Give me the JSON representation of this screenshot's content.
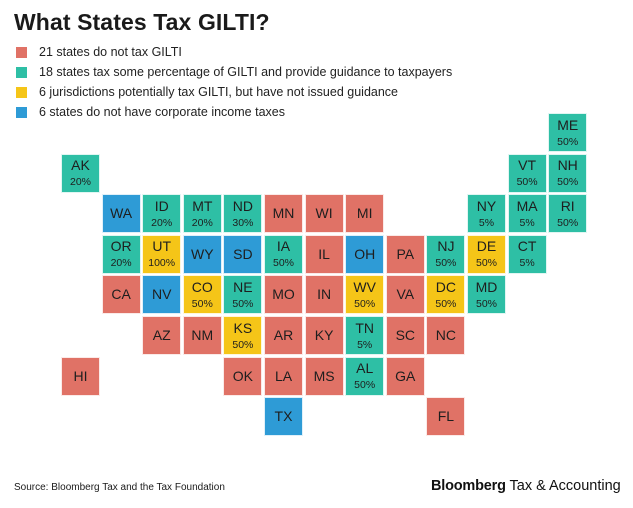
{
  "title": "What States Tax GILTI?",
  "legend": [
    {
      "key": "none",
      "label": "21 states do not tax GILTI",
      "color": "#E07266"
    },
    {
      "key": "some",
      "label": "18 states tax some percentage of GILTI and provide guidance to taxpayers",
      "color": "#2EBFA5"
    },
    {
      "key": "potential",
      "label": "6 jurisdictions potentially tax GILTI, but have not issued guidance",
      "color": "#F5C518"
    },
    {
      "key": "nocorp",
      "label": "6 states do not have corporate income taxes",
      "color": "#2E9BD6"
    }
  ],
  "states": [
    {
      "abbr": "ME",
      "pct": "50%",
      "cat": "some",
      "row": 0,
      "col": 12
    },
    {
      "abbr": "AK",
      "pct": "20%",
      "cat": "some",
      "row": 1,
      "col": 0
    },
    {
      "abbr": "VT",
      "pct": "50%",
      "cat": "some",
      "row": 1,
      "col": 11
    },
    {
      "abbr": "NH",
      "pct": "50%",
      "cat": "some",
      "row": 1,
      "col": 12
    },
    {
      "abbr": "WA",
      "pct": "",
      "cat": "nocorp",
      "row": 2,
      "col": 1
    },
    {
      "abbr": "ID",
      "pct": "20%",
      "cat": "some",
      "row": 2,
      "col": 2
    },
    {
      "abbr": "MT",
      "pct": "20%",
      "cat": "some",
      "row": 2,
      "col": 3
    },
    {
      "abbr": "ND",
      "pct": "30%",
      "cat": "some",
      "row": 2,
      "col": 4
    },
    {
      "abbr": "MN",
      "pct": "",
      "cat": "none",
      "row": 2,
      "col": 5
    },
    {
      "abbr": "WI",
      "pct": "",
      "cat": "none",
      "row": 2,
      "col": 6
    },
    {
      "abbr": "MI",
      "pct": "",
      "cat": "none",
      "row": 2,
      "col": 7
    },
    {
      "abbr": "NY",
      "pct": "5%",
      "cat": "some",
      "row": 2,
      "col": 10
    },
    {
      "abbr": "MA",
      "pct": "5%",
      "cat": "some",
      "row": 2,
      "col": 11
    },
    {
      "abbr": "RI",
      "pct": "50%",
      "cat": "some",
      "row": 2,
      "col": 12
    },
    {
      "abbr": "OR",
      "pct": "20%",
      "cat": "some",
      "row": 3,
      "col": 1
    },
    {
      "abbr": "UT",
      "pct": "100%",
      "cat": "potential",
      "row": 3,
      "col": 2
    },
    {
      "abbr": "WY",
      "pct": "",
      "cat": "nocorp",
      "row": 3,
      "col": 3
    },
    {
      "abbr": "SD",
      "pct": "",
      "cat": "nocorp",
      "row": 3,
      "col": 4
    },
    {
      "abbr": "IA",
      "pct": "50%",
      "cat": "some",
      "row": 3,
      "col": 5
    },
    {
      "abbr": "IL",
      "pct": "",
      "cat": "none",
      "row": 3,
      "col": 6
    },
    {
      "abbr": "OH",
      "pct": "",
      "cat": "nocorp",
      "row": 3,
      "col": 7
    },
    {
      "abbr": "PA",
      "pct": "",
      "cat": "none",
      "row": 3,
      "col": 8
    },
    {
      "abbr": "NJ",
      "pct": "50%",
      "cat": "some",
      "row": 3,
      "col": 9
    },
    {
      "abbr": "DE",
      "pct": "50%",
      "cat": "potential",
      "row": 3,
      "col": 10
    },
    {
      "abbr": "CT",
      "pct": "5%",
      "cat": "some",
      "row": 3,
      "col": 11
    },
    {
      "abbr": "CA",
      "pct": "",
      "cat": "none",
      "row": 4,
      "col": 1
    },
    {
      "abbr": "NV",
      "pct": "",
      "cat": "nocorp",
      "row": 4,
      "col": 2
    },
    {
      "abbr": "CO",
      "pct": "50%",
      "cat": "potential",
      "row": 4,
      "col": 3
    },
    {
      "abbr": "NE",
      "pct": "50%",
      "cat": "some",
      "row": 4,
      "col": 4
    },
    {
      "abbr": "MO",
      "pct": "",
      "cat": "none",
      "row": 4,
      "col": 5
    },
    {
      "abbr": "IN",
      "pct": "",
      "cat": "none",
      "row": 4,
      "col": 6
    },
    {
      "abbr": "WV",
      "pct": "50%",
      "cat": "potential",
      "row": 4,
      "col": 7
    },
    {
      "abbr": "VA",
      "pct": "",
      "cat": "none",
      "row": 4,
      "col": 8
    },
    {
      "abbr": "DC",
      "pct": "50%",
      "cat": "potential",
      "row": 4,
      "col": 9
    },
    {
      "abbr": "MD",
      "pct": "50%",
      "cat": "some",
      "row": 4,
      "col": 10
    },
    {
      "abbr": "AZ",
      "pct": "",
      "cat": "none",
      "row": 5,
      "col": 2
    },
    {
      "abbr": "NM",
      "pct": "",
      "cat": "none",
      "row": 5,
      "col": 3
    },
    {
      "abbr": "KS",
      "pct": "50%",
      "cat": "potential",
      "row": 5,
      "col": 4
    },
    {
      "abbr": "AR",
      "pct": "",
      "cat": "none",
      "row": 5,
      "col": 5
    },
    {
      "abbr": "KY",
      "pct": "",
      "cat": "none",
      "row": 5,
      "col": 6
    },
    {
      "abbr": "TN",
      "pct": "5%",
      "cat": "some",
      "row": 5,
      "col": 7
    },
    {
      "abbr": "SC",
      "pct": "",
      "cat": "none",
      "row": 5,
      "col": 8
    },
    {
      "abbr": "NC",
      "pct": "",
      "cat": "none",
      "row": 5,
      "col": 9
    },
    {
      "abbr": "HI",
      "pct": "",
      "cat": "none",
      "row": 6,
      "col": 0
    },
    {
      "abbr": "OK",
      "pct": "",
      "cat": "none",
      "row": 6,
      "col": 4
    },
    {
      "abbr": "LA",
      "pct": "",
      "cat": "none",
      "row": 6,
      "col": 5
    },
    {
      "abbr": "MS",
      "pct": "",
      "cat": "none",
      "row": 6,
      "col": 6
    },
    {
      "abbr": "AL",
      "pct": "50%",
      "cat": "some",
      "row": 6,
      "col": 7
    },
    {
      "abbr": "GA",
      "pct": "",
      "cat": "none",
      "row": 6,
      "col": 8
    },
    {
      "abbr": "TX",
      "pct": "",
      "cat": "nocorp",
      "row": 7,
      "col": 5
    },
    {
      "abbr": "FL",
      "pct": "",
      "cat": "none",
      "row": 7,
      "col": 9
    }
  ],
  "footer": {
    "source": "Source: Bloomberg Tax and the Tax Foundation",
    "brand_bold": "Bloomberg",
    "brand_rest": " Tax & Accounting"
  }
}
